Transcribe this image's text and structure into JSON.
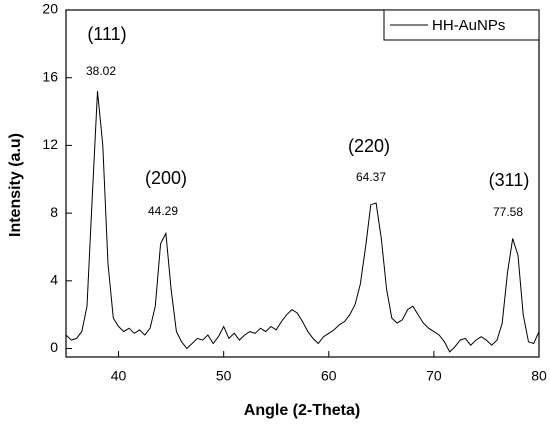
{
  "chart_data": {
    "type": "line",
    "xlabel": "Angle (2-Theta)",
    "ylabel": "Intensity (a.u)",
    "x": [
      35,
      35.5,
      36,
      36.5,
      37,
      37.5,
      38,
      38.5,
      39,
      39.5,
      40,
      40.5,
      41,
      41.5,
      42,
      42.5,
      43,
      43.5,
      44,
      44.5,
      45,
      45.5,
      46,
      46.5,
      47,
      47.5,
      48,
      48.5,
      49,
      49.5,
      50,
      50.5,
      51,
      51.5,
      52,
      52.5,
      53,
      53.5,
      54,
      54.5,
      55,
      55.5,
      56,
      56.5,
      57,
      57.5,
      58,
      58.5,
      59,
      59.5,
      60,
      60.5,
      61,
      61.5,
      62,
      62.5,
      63,
      63.5,
      64,
      64.5,
      65,
      65.5,
      66,
      66.5,
      67,
      67.5,
      68,
      68.5,
      69,
      69.5,
      70,
      70.5,
      71,
      71.5,
      72,
      72.5,
      73,
      73.5,
      74,
      74.5,
      75,
      75.5,
      76,
      76.5,
      77,
      77.5,
      78,
      78.5,
      79,
      79.5,
      80
    ],
    "series": [
      {
        "name": "HH-AuNPs",
        "color": "#000000",
        "values": [
          0.8,
          0.5,
          0.6,
          1.0,
          2.5,
          9,
          15.2,
          12,
          5,
          1.8,
          1.3,
          1.0,
          1.2,
          0.9,
          1.1,
          0.8,
          1.2,
          2.5,
          6.2,
          6.8,
          3.5,
          1.0,
          0.4,
          0.0,
          0.3,
          0.6,
          0.5,
          0.8,
          0.3,
          0.7,
          1.3,
          0.6,
          0.9,
          0.5,
          0.8,
          1.0,
          0.9,
          1.2,
          1.0,
          1.3,
          1.1,
          1.6,
          2.0,
          2.3,
          2.1,
          1.6,
          1.0,
          0.6,
          0.3,
          0.7,
          0.9,
          1.1,
          1.4,
          1.6,
          2.0,
          2.6,
          3.8,
          6.0,
          8.5,
          8.6,
          6.5,
          3.5,
          1.8,
          1.5,
          1.7,
          2.3,
          2.5,
          2.0,
          1.5,
          1.2,
          1.0,
          0.8,
          0.4,
          -0.2,
          0.1,
          0.5,
          0.6,
          0.2,
          0.5,
          0.7,
          0.5,
          0.2,
          0.5,
          1.5,
          4.5,
          6.5,
          5.5,
          2.0,
          0.4,
          0.3,
          1.0
        ]
      }
    ],
    "xlim": [
      35,
      80
    ],
    "xticks": [
      40,
      50,
      60,
      70,
      80
    ],
    "ylim": [
      -0.5,
      20
    ],
    "yticks": [
      0,
      4,
      8,
      12,
      16,
      20
    ],
    "legend": "upper right",
    "annotations": [
      {
        "label": "(111)",
        "value": "38.02"
      },
      {
        "label": "(200)",
        "value": "44.29"
      },
      {
        "label": "(220)",
        "value": "64.37"
      },
      {
        "label": "(311)",
        "value": "77.58"
      }
    ]
  }
}
